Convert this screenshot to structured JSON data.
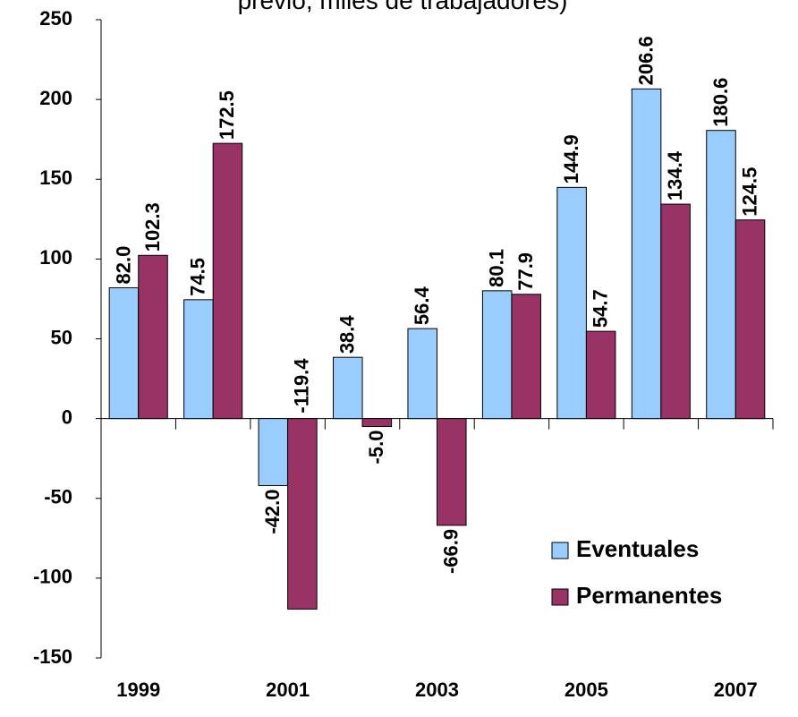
{
  "chart_data": {
    "type": "bar",
    "title": "previo, miles de trabajadores)",
    "categories": [
      "1999",
      null,
      "2001",
      null,
      "2003",
      null,
      "2005",
      null,
      "2007"
    ],
    "series": [
      {
        "name": "Eventuales",
        "color": "#99ccff",
        "values": [
          82.0,
          74.5,
          -42.0,
          38.4,
          56.4,
          80.1,
          144.9,
          206.6,
          180.6
        ],
        "value_labels": [
          "82.0",
          "74.5",
          "-42.0",
          "38.4",
          "56.4",
          "80.1",
          "144.9",
          "206.6",
          "180.6"
        ]
      },
      {
        "name": "Permanentes",
        "color": "#993366",
        "values": [
          102.3,
          172.5,
          -119.4,
          -5.0,
          -66.9,
          77.9,
          54.7,
          134.4,
          124.5
        ],
        "value_labels": [
          "102.3",
          "172.5",
          "-119.4",
          "-5.0",
          "-66.9",
          "77.9",
          "54.7",
          "134.4",
          "124.5"
        ]
      }
    ],
    "ylim": [
      -150,
      250
    ],
    "yticks": [
      -150,
      -100,
      -50,
      0,
      50,
      100,
      150,
      200,
      250
    ],
    "legend": "lower right"
  }
}
